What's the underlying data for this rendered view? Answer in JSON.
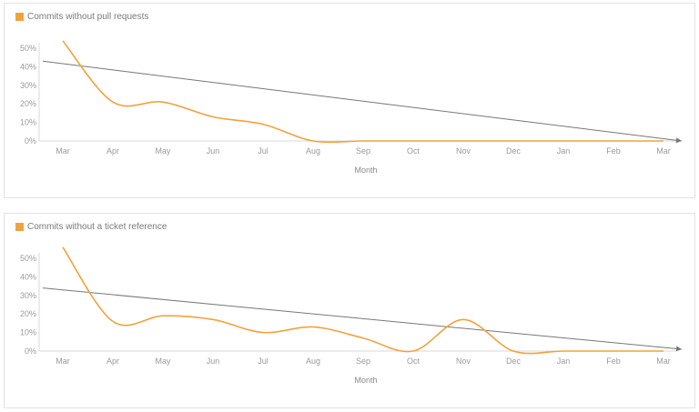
{
  "accent_color": "#f2a23c",
  "trend_color": "#777777",
  "chart_data": [
    {
      "type": "line",
      "legend": "Commits without pull requests",
      "xlabel": "Month",
      "ylabel": "",
      "ylim": [
        0,
        50
      ],
      "yticks": [
        "0%",
        "10%",
        "20%",
        "30%",
        "40%",
        "50%"
      ],
      "categories": [
        "Mar",
        "Apr",
        "May",
        "Jun",
        "Jul",
        "Aug",
        "Sep",
        "Oct",
        "Nov",
        "Dec",
        "Jan",
        "Feb",
        "Mar"
      ],
      "series": [
        {
          "name": "Commits without pull requests",
          "values": [
            54,
            21,
            21,
            13,
            9,
            0,
            0,
            0,
            0,
            0,
            0,
            0,
            0
          ]
        }
      ],
      "trendline": {
        "start": 43,
        "end": 0
      },
      "legend_position": "top-left",
      "grid": false
    },
    {
      "type": "line",
      "legend": "Commits without a ticket reference",
      "xlabel": "Month",
      "ylabel": "",
      "ylim": [
        0,
        50
      ],
      "yticks": [
        "0%",
        "10%",
        "20%",
        "30%",
        "40%",
        "50%"
      ],
      "categories": [
        "Mar",
        "Apr",
        "May",
        "Jun",
        "Jul",
        "Aug",
        "Sep",
        "Oct",
        "Nov",
        "Dec",
        "Jan",
        "Feb",
        "Mar"
      ],
      "series": [
        {
          "name": "Commits without a ticket reference",
          "values": [
            56,
            16,
            19,
            17,
            10,
            13,
            7,
            0,
            17,
            0,
            0,
            0,
            0
          ]
        }
      ],
      "trendline": {
        "start": 34,
        "end": 1
      },
      "legend_position": "top-left",
      "grid": false
    }
  ]
}
